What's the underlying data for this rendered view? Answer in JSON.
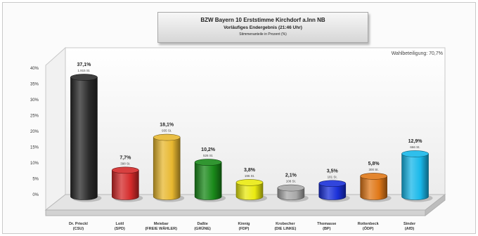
{
  "header": {
    "title": "BZW Bayern 10 Erststimme Kirchdorf a.Inn NB",
    "subtitle": "Vorläufiges Endergebnis (21:46 Uhr)",
    "note": "Stimmenanteile in Prozent (%)"
  },
  "turnout_label": "Wahlbeteiligung: 70,7%",
  "chart_data": {
    "type": "bar",
    "categories": [
      [
        "Dr. Prieckl",
        "(CSU)"
      ],
      [
        "Loitl",
        "(SPD)"
      ],
      [
        "Meiebar",
        "(FREIE WÄHLER)"
      ],
      [
        "Daßte",
        "(GRÜNE)"
      ],
      [
        "Kinnig",
        "(FDP)"
      ],
      [
        "Krobecher",
        "(DIE LINKE)"
      ],
      [
        "Thomasse",
        "(BP)"
      ],
      [
        "Rottenbeck",
        "(ÖDP)"
      ],
      [
        "Sinder",
        "(AfD)"
      ]
    ],
    "values": [
      37.1,
      7.7,
      18.1,
      10.2,
      3.8,
      2.1,
      3.5,
      5.8,
      12.9
    ],
    "value_labels": [
      "37,1%",
      "7,7%",
      "18,1%",
      "10,2%",
      "3,8%",
      "2,1%",
      "3,5%",
      "5,8%",
      "12,9%"
    ],
    "vote_labels": [
      "1.915 St.",
      "398 St.",
      "935 St.",
      "526 St.",
      "196 St.",
      "108 St.",
      "181 St.",
      "300 St.",
      "666 St."
    ],
    "colors": [
      "#2a2a2a",
      "#d42a2a",
      "#e8b830",
      "#1a8a1a",
      "#eaea10",
      "#a8a8a8",
      "#1a30d8",
      "#e07818",
      "#18b8ea"
    ],
    "yticks": [
      "0%",
      "5%",
      "10%",
      "15%",
      "20%",
      "25%",
      "30%",
      "35%",
      "40%"
    ],
    "ylim": [
      0,
      40
    ],
    "grid": false
  }
}
